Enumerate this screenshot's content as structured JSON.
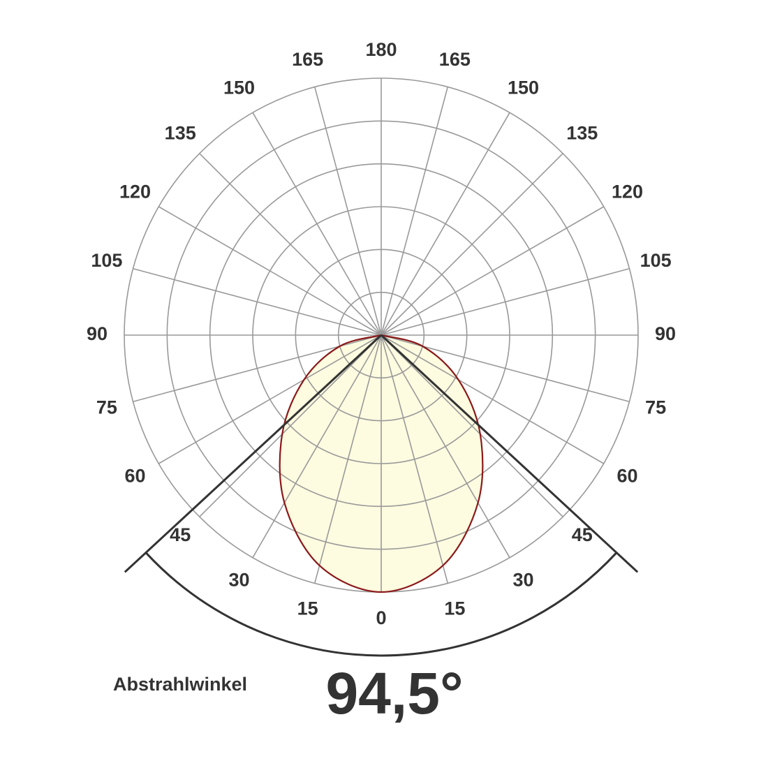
{
  "chart_data": {
    "type": "polar",
    "angle_ticks": [
      0,
      15,
      30,
      45,
      60,
      75,
      90,
      105,
      120,
      135,
      150,
      165,
      180
    ],
    "rlim": [
      0,
      6
    ],
    "rticks": [
      1,
      2,
      3,
      4,
      5,
      6
    ],
    "grid": true,
    "series": [
      {
        "color": "#8b1a1a",
        "angles": [
          -90,
          -75,
          -60,
          -45,
          -30,
          -15,
          0,
          15,
          30,
          45,
          60,
          75,
          90
        ],
        "values": [
          0,
          1.0,
          2.08,
          3.27,
          4.52,
          5.57,
          6.0,
          5.57,
          4.52,
          3.27,
          2.08,
          1.0,
          0
        ]
      }
    ],
    "beam_angle": 94.5,
    "beam_angle_label": "94,5°",
    "beam_label": "Abstrahlwinkel"
  }
}
